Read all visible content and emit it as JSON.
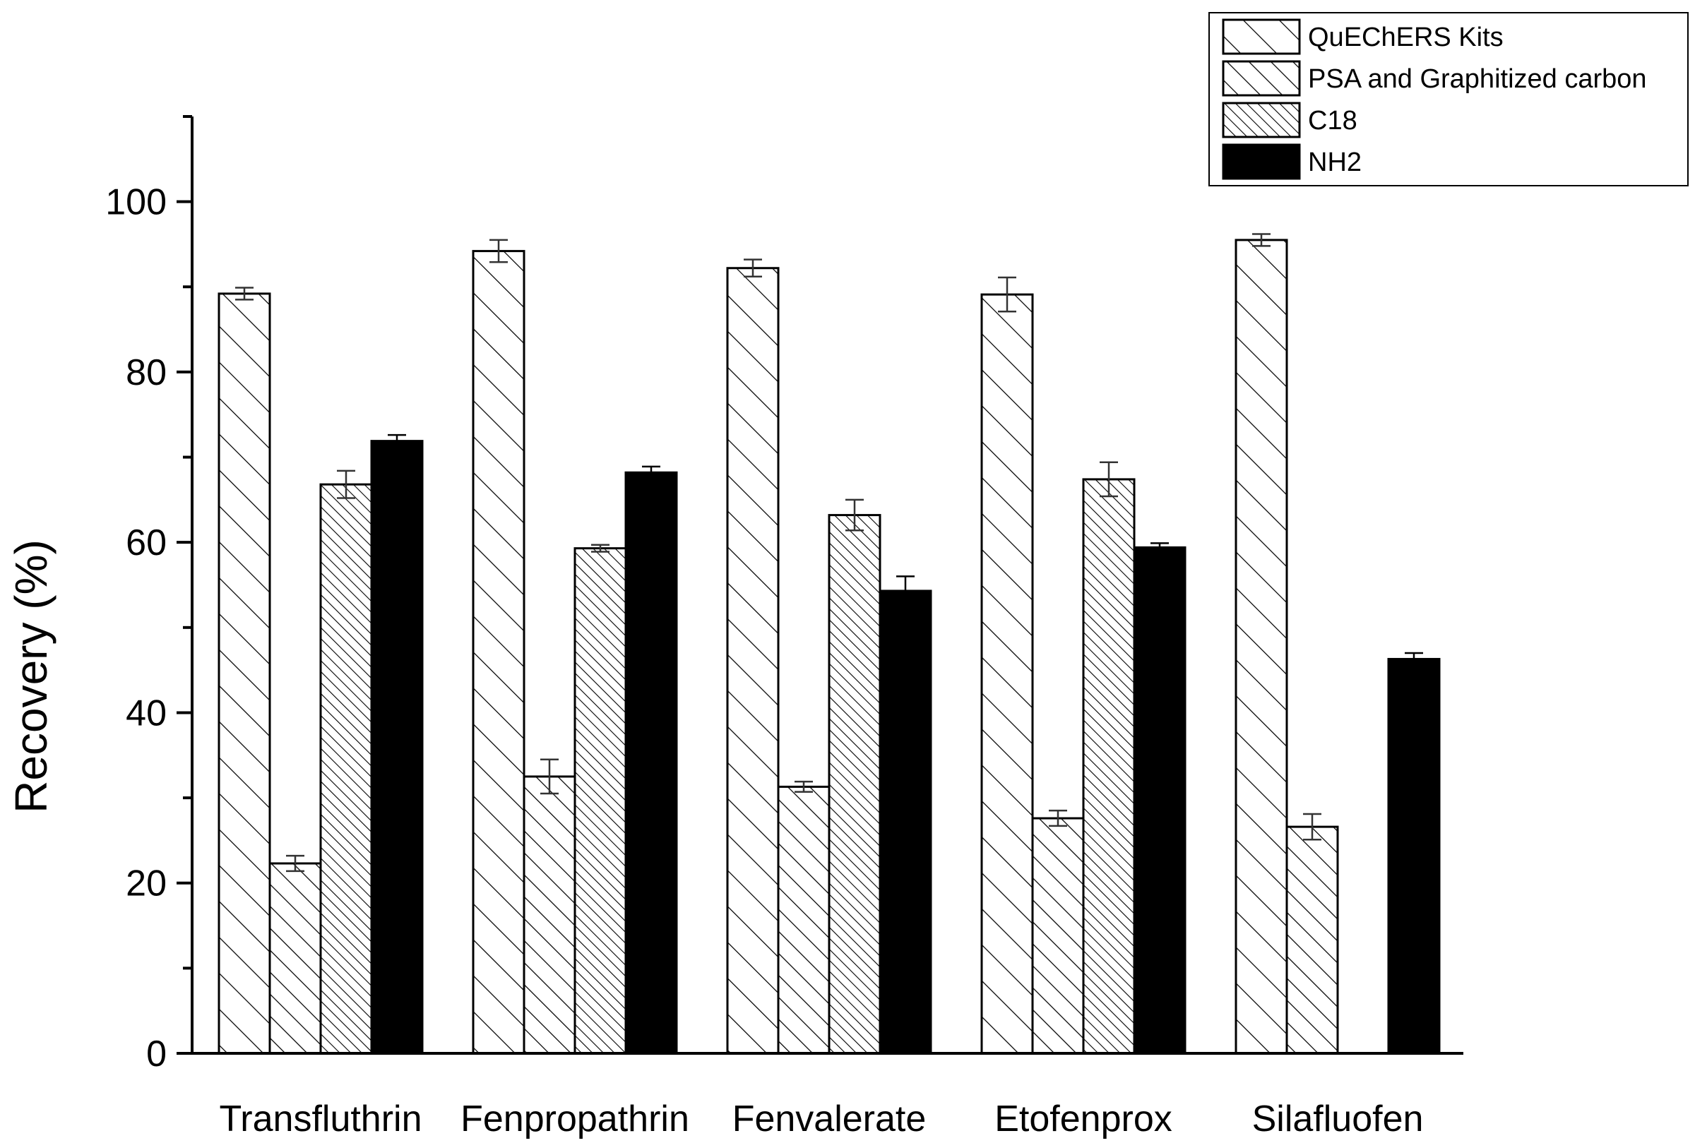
{
  "chart_data": {
    "type": "bar",
    "title": "",
    "xlabel": "",
    "ylabel": "Recovery (%)",
    "ylim": [
      0,
      110
    ],
    "yticks": [
      0,
      20,
      40,
      60,
      80,
      100
    ],
    "grid": false,
    "legend_position": "top-right",
    "categories": [
      "Transfluthrin",
      "Fenpropathrin",
      "Fenvalerate",
      "Etofenprox",
      "Silafluofen"
    ],
    "series": [
      {
        "name": "QuEChERS Kits",
        "pattern": "sparse-diagonal-hatch",
        "color": "#000000",
        "values": [
          89.2,
          94.2,
          92.2,
          89.1,
          95.5
        ],
        "errors": [
          0.7,
          1.3,
          1.0,
          2.0,
          0.7
        ]
      },
      {
        "name": "PSA and Graphitized carbon",
        "pattern": "diagonal-hatch",
        "color": "#000000",
        "values": [
          22.3,
          32.5,
          31.3,
          27.6,
          26.6
        ],
        "errors": [
          0.9,
          2.0,
          0.6,
          0.9,
          1.5
        ]
      },
      {
        "name": "C18",
        "pattern": "dense-diagonal-hatch",
        "color": "#000000",
        "values": [
          66.8,
          59.3,
          63.2,
          67.4,
          null
        ],
        "errors": [
          1.6,
          0.4,
          1.8,
          2.0,
          null
        ]
      },
      {
        "name": "NH2",
        "pattern": "solid",
        "color": "#000000",
        "values": [
          71.9,
          68.2,
          54.3,
          59.4,
          46.3
        ],
        "errors": [
          0.7,
          0.7,
          1.7,
          0.5,
          0.7
        ]
      }
    ]
  }
}
